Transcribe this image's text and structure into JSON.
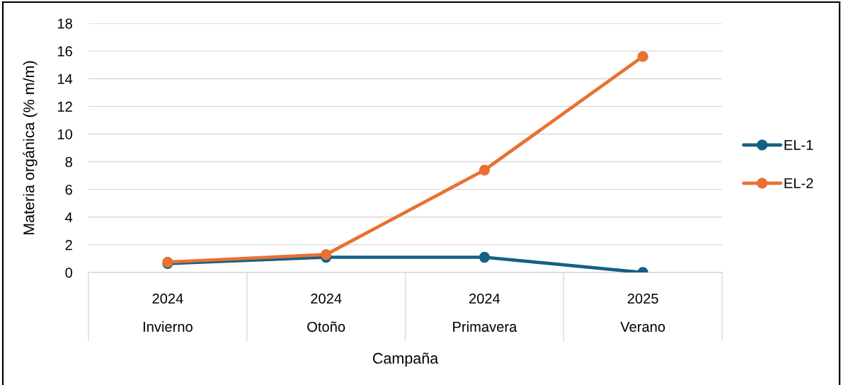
{
  "chart_data": {
    "type": "line",
    "xlabel": "Campaña",
    "ylabel": "Materia orgánica (% m/m)",
    "categories": [
      "2024\nInvierno",
      "2024\nOtoño",
      "2024\nPrimavera",
      "2025\nVerano"
    ],
    "series": [
      {
        "name": "EL-1",
        "color": "#156082",
        "values": [
          0.65,
          1.1,
          1.1,
          0
        ]
      },
      {
        "name": "EL-2",
        "color": "#e97132",
        "values": [
          0.75,
          1.3,
          7.4,
          15.6
        ]
      }
    ],
    "ylim": [
      0,
      18
    ],
    "yticks": [
      0,
      2,
      4,
      6,
      8,
      10,
      12,
      14,
      16,
      18
    ],
    "grid": "y",
    "legend": "right",
    "marker": "circle",
    "line_style": "solid"
  }
}
